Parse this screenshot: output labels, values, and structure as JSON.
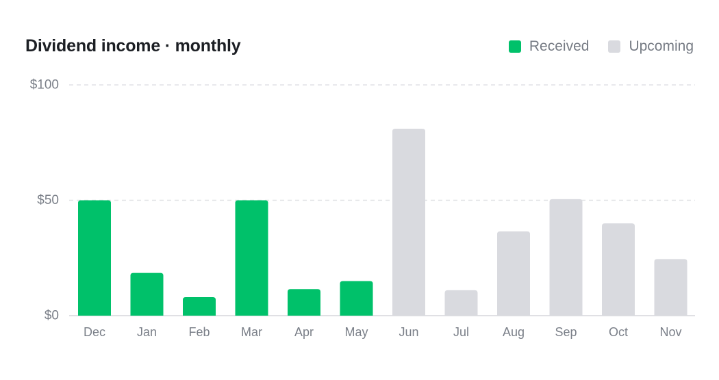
{
  "chart_data": {
    "type": "bar",
    "title": "Dividend income · monthly",
    "xlabel": "",
    "ylabel": "",
    "categories": [
      "Dec",
      "Jan",
      "Feb",
      "Mar",
      "Apr",
      "May",
      "Jun",
      "Jul",
      "Aug",
      "Sep",
      "Oct",
      "Nov"
    ],
    "series": [
      {
        "name": "Received",
        "color": "#00c16a",
        "values": [
          50,
          18.5,
          8,
          50,
          11.5,
          15,
          null,
          null,
          null,
          null,
          null,
          null
        ]
      },
      {
        "name": "Upcoming",
        "color": "#d9dadf",
        "values": [
          null,
          null,
          null,
          null,
          null,
          null,
          81,
          11,
          36.5,
          50.5,
          40,
          24.5
        ]
      }
    ],
    "ylim": [
      0,
      100
    ],
    "yticks": [
      0,
      50,
      100
    ],
    "ytick_labels": [
      "$0",
      "$50",
      "$100"
    ],
    "grid": true,
    "legend_position": "top-right"
  },
  "colors": {
    "received": "#00c16a",
    "upcoming": "#d9dadf",
    "grid": "#e0e1e5",
    "axis": "#d5d6db",
    "tick_text": "#7a7f88"
  }
}
